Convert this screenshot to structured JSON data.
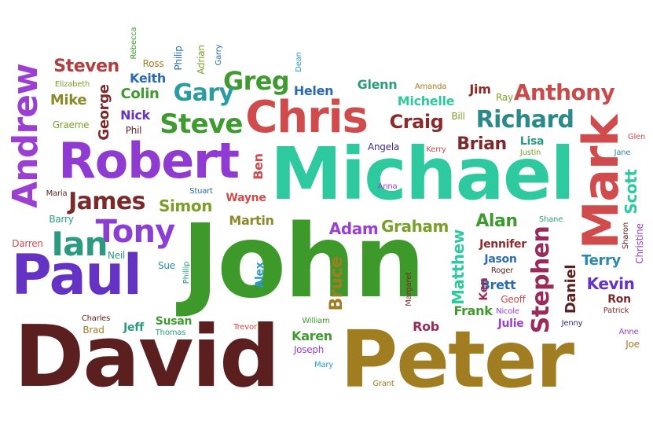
{
  "words": [
    {
      "text": "David",
      "color": "#5c1f1f"
    },
    {
      "text": "Peter",
      "color": "#a17d22"
    },
    {
      "text": "John",
      "color": "#3d9a2a"
    },
    {
      "text": "Michael",
      "color": "#2fc9a0"
    },
    {
      "text": "Paul",
      "color": "#6533c4"
    },
    {
      "text": "Robert",
      "color": "#8f3bd1"
    },
    {
      "text": "Chris",
      "color": "#d04b4b"
    },
    {
      "text": "Mark",
      "color": "#d04b4b"
    },
    {
      "text": "Andrew",
      "color": "#9a3fd2"
    },
    {
      "text": "Tony",
      "color": "#8a3fd2"
    },
    {
      "text": "Ian",
      "color": "#2a9b80"
    },
    {
      "text": "James",
      "color": "#7a2a2a"
    },
    {
      "text": "Steve",
      "color": "#3f9b30"
    },
    {
      "text": "Richard",
      "color": "#2a8a8a"
    },
    {
      "text": "Anthony",
      "color": "#c94a4a"
    },
    {
      "text": "Greg",
      "color": "#3f9b30"
    },
    {
      "text": "Gary",
      "color": "#2a9ba0"
    },
    {
      "text": "Stephen",
      "color": "#9a2a5a"
    },
    {
      "text": "Steven",
      "color": "#b04040"
    },
    {
      "text": "Craig",
      "color": "#8a2a2a"
    },
    {
      "text": "Brian",
      "color": "#7a2a2a"
    },
    {
      "text": "Simon",
      "color": "#7ba02a"
    },
    {
      "text": "Alan",
      "color": "#3f9b30"
    },
    {
      "text": "Graham",
      "color": "#7ba02a"
    },
    {
      "text": "Adam",
      "color": "#9a3fd2"
    },
    {
      "text": "Martin",
      "color": "#8a8a2a"
    },
    {
      "text": "Wayne",
      "color": "#d04b4b"
    },
    {
      "text": "Matthew",
      "color": "#2fc9a0"
    },
    {
      "text": "Bruce",
      "color": "#a17d22"
    },
    {
      "text": "Kevin",
      "color": "#6533c4"
    },
    {
      "text": "Terry",
      "color": "#2a8ab0"
    },
    {
      "text": "Daniel",
      "color": "#5c1f1f"
    },
    {
      "text": "Scott",
      "color": "#2fc9a0"
    },
    {
      "text": "Michelle",
      "color": "#2fc9a0"
    },
    {
      "text": "Colin",
      "color": "#3f9b30"
    },
    {
      "text": "Keith",
      "color": "#2a6ab0"
    },
    {
      "text": "Mike",
      "color": "#8a8a2a"
    },
    {
      "text": "George",
      "color": "#7a2a2a"
    },
    {
      "text": "Nick",
      "color": "#6533c4"
    },
    {
      "text": "Phil",
      "color": "#5c1f1f"
    },
    {
      "text": "Graeme",
      "color": "#7ba02a"
    },
    {
      "text": "Elizabeth",
      "color": "#7ba02a"
    },
    {
      "text": "Rebecca",
      "color": "#3f9b30"
    },
    {
      "text": "Ross",
      "color": "#a17d22"
    },
    {
      "text": "Philip",
      "color": "#2a6ab0"
    },
    {
      "text": "Adrian",
      "color": "#7ba02a"
    },
    {
      "text": "Garry",
      "color": "#2a6ab0"
    },
    {
      "text": "Dean",
      "color": "#2a9bd0"
    },
    {
      "text": "Helen",
      "color": "#2a6ab0"
    },
    {
      "text": "Glenn",
      "color": "#2a9b80"
    },
    {
      "text": "Amanda",
      "color": "#a17d22"
    },
    {
      "text": "Jim",
      "color": "#8a2a2a"
    },
    {
      "text": "Ray",
      "color": "#7ba02a"
    },
    {
      "text": "Glen",
      "color": "#d04b4b"
    },
    {
      "text": "Bill",
      "color": "#7ba02a"
    },
    {
      "text": "Angela",
      "color": "#3a2a8a"
    },
    {
      "text": "Kerry",
      "color": "#d04b4b"
    },
    {
      "text": "Lisa",
      "color": "#2a9b80"
    },
    {
      "text": "Justin",
      "color": "#7ba02a"
    },
    {
      "text": "Jane",
      "color": "#2a8ab0"
    },
    {
      "text": "Anna",
      "color": "#9a3fd2"
    },
    {
      "text": "Ben",
      "color": "#d04b4b"
    },
    {
      "text": "Stuart",
      "color": "#2a6ab0"
    },
    {
      "text": "Maria",
      "color": "#5c1f1f"
    },
    {
      "text": "Barry",
      "color": "#2a9b80"
    },
    {
      "text": "Darren",
      "color": "#d04b4b"
    },
    {
      "text": "Neil",
      "color": "#2a9b80"
    },
    {
      "text": "Sue",
      "color": "#2a8ab0"
    },
    {
      "text": "Phillip",
      "color": "#2a9b80"
    },
    {
      "text": "Alex",
      "color": "#2a9bd0"
    },
    {
      "text": "Shane",
      "color": "#2a9b80"
    },
    {
      "text": "Sharon",
      "color": "#5c1f1f"
    },
    {
      "text": "Christine",
      "color": "#9a3fd2"
    },
    {
      "text": "Jennifer",
      "color": "#8a2a2a"
    },
    {
      "text": "Jason",
      "color": "#2a6ab0"
    },
    {
      "text": "Roger",
      "color": "#5c1f1f"
    },
    {
      "text": "Brett",
      "color": "#2a6ab0"
    },
    {
      "text": "Ken",
      "color": "#9a2a5a"
    },
    {
      "text": "Margaret",
      "color": "#7a2a2a"
    },
    {
      "text": "Ron",
      "color": "#7a2a2a"
    },
    {
      "text": "Patrick",
      "color": "#8a2a2a"
    },
    {
      "text": "Geoff",
      "color": "#d04b4b"
    },
    {
      "text": "Nicole",
      "color": "#9a3fd2"
    },
    {
      "text": "Frank",
      "color": "#3f9b30"
    },
    {
      "text": "Julie",
      "color": "#9a3fd2"
    },
    {
      "text": "Jenny",
      "color": "#3a2a8a"
    },
    {
      "text": "Anne",
      "color": "#9a3fd2"
    },
    {
      "text": "Joe",
      "color": "#a17d22"
    },
    {
      "text": "Rob",
      "color": "#9a2a5a"
    },
    {
      "text": "William",
      "color": "#3f9b30"
    },
    {
      "text": "Karen",
      "color": "#3f9b30"
    },
    {
      "text": "Joseph",
      "color": "#9a3fd2"
    },
    {
      "text": "Mary",
      "color": "#2a9bd0"
    },
    {
      "text": "Grant",
      "color": "#a17d22"
    },
    {
      "text": "Trevor",
      "color": "#d04b4b"
    },
    {
      "text": "Susan",
      "color": "#3f9b30"
    },
    {
      "text": "Thomas",
      "color": "#2a9b80"
    },
    {
      "text": "Jeff",
      "color": "#2a9b80"
    },
    {
      "text": "Charles",
      "color": "#5c1f1f"
    },
    {
      "text": "Brad",
      "color": "#a17d22"
    }
  ]
}
